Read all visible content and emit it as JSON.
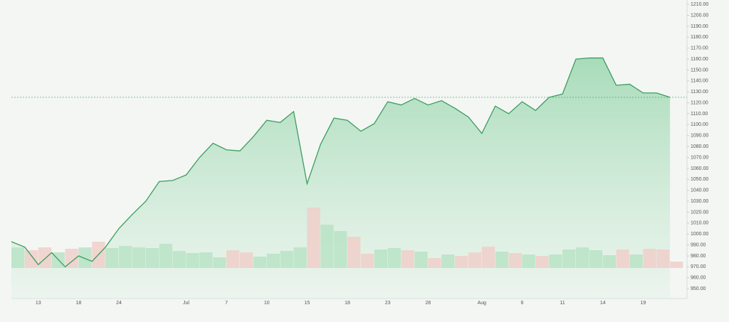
{
  "chart_data": {
    "type": "line",
    "area": true,
    "color": "#3a9d5d",
    "categories": [
      null,
      null,
      "13",
      null,
      null,
      "18",
      null,
      null,
      "24",
      null,
      null,
      null,
      null,
      "Jul",
      null,
      null,
      "7",
      null,
      null,
      "10",
      null,
      null,
      "15",
      null,
      null,
      "18",
      null,
      null,
      "23",
      null,
      null,
      "28",
      null,
      null,
      null,
      "Aug",
      null,
      null,
      "6",
      null,
      null,
      "11",
      null,
      null,
      "14",
      null,
      null,
      "19",
      null,
      null
    ],
    "values": [
      993,
      988,
      972,
      983,
      970,
      980,
      975,
      988,
      1005,
      1018,
      1030,
      1048,
      1049,
      1054,
      1070,
      1083,
      1077,
      1076,
      1089,
      1104,
      1102,
      1112,
      1046,
      1082,
      1106,
      1104,
      1094,
      1101,
      1121,
      1118,
      1124,
      1118,
      1122,
      1115,
      1107,
      1092,
      1117,
      1110,
      1121,
      1113,
      1125,
      1128,
      1160,
      1161,
      1161,
      1136,
      1137,
      1129,
      1129,
      1125
    ],
    "volume": {
      "values": [
        29,
        25,
        29,
        22,
        27,
        29,
        37,
        28,
        31,
        29,
        28,
        34,
        24,
        21,
        22,
        15,
        25,
        22,
        16,
        20,
        24,
        29,
        85,
        61,
        52,
        44,
        20,
        26,
        28,
        25,
        23,
        14,
        19,
        17,
        22,
        30,
        23,
        21,
        19,
        17,
        19,
        26,
        29,
        25,
        18,
        26,
        19,
        27,
        26,
        9
      ],
      "colors": [
        "#b9e3c6",
        "#f0cfc9",
        "#f0cfc9",
        "#b9e3c6",
        "#f0cfc9",
        "#b9e3c6",
        "#f0cfc9",
        "#b9e3c6",
        "#b9e3c6",
        "#b9e3c6",
        "#b9e3c6",
        "#b9e3c6",
        "#b9e3c6",
        "#b9e3c6",
        "#b9e3c6",
        "#b9e3c6",
        "#f0cfc9",
        "#f0cfc9",
        "#b9e3c6",
        "#b9e3c6",
        "#b9e3c6",
        "#b9e3c6",
        "#f0cfc9",
        "#b9e3c6",
        "#b9e3c6",
        "#f0cfc9",
        "#f0cfc9",
        "#b9e3c6",
        "#b9e3c6",
        "#f0cfc9",
        "#b9e3c6",
        "#f0cfc9",
        "#b9e3c6",
        "#f0cfc9",
        "#f0cfc9",
        "#f0cfc9",
        "#b9e3c6",
        "#f0cfc9",
        "#b9e3c6",
        "#f0cfc9",
        "#b9e3c6",
        "#b9e3c6",
        "#b9e3c6",
        "#b9e3c6",
        "#b9e3c6",
        "#f0cfc9",
        "#b9e3c6",
        "#f0cfc9",
        "#f0cfc9",
        "#f0cfc9"
      ]
    },
    "ylim": [
      941,
      1214
    ],
    "yticks": [
      {
        "value": 950,
        "label": "950.00"
      },
      {
        "value": 960,
        "label": "960.00"
      },
      {
        "value": 970,
        "label": "970.00"
      },
      {
        "value": 980,
        "label": "980.00"
      },
      {
        "value": 990,
        "label": "990.00"
      },
      {
        "value": 1000,
        "label": "1000.00"
      },
      {
        "value": 1010,
        "label": "1010.00"
      },
      {
        "value": 1020,
        "label": "1020.00"
      },
      {
        "value": 1030,
        "label": "1030.00"
      },
      {
        "value": 1040,
        "label": "1040.00"
      },
      {
        "value": 1050,
        "label": "1050.00"
      },
      {
        "value": 1060,
        "label": "1060.00"
      },
      {
        "value": 1070,
        "label": "1070.00"
      },
      {
        "value": 1080,
        "label": "1080.00"
      },
      {
        "value": 1090,
        "label": "1090.00"
      },
      {
        "value": 1100,
        "label": "1100.00"
      },
      {
        "value": 1110,
        "label": "1110.00"
      },
      {
        "value": 1120,
        "label": "1120.00"
      },
      {
        "value": 1130,
        "label": "1130.00"
      },
      {
        "value": 1140,
        "label": "1140.00"
      },
      {
        "value": 1150,
        "label": "1150.00"
      },
      {
        "value": 1160,
        "label": "1160.00"
      },
      {
        "value": 1170,
        "label": "1170.00"
      },
      {
        "value": 1180,
        "label": "1180.00"
      },
      {
        "value": 1190,
        "label": "1190.00"
      },
      {
        "value": 1200,
        "label": "1200.00"
      },
      {
        "value": 1210,
        "label": "1210.00"
      }
    ],
    "grid": false
  }
}
